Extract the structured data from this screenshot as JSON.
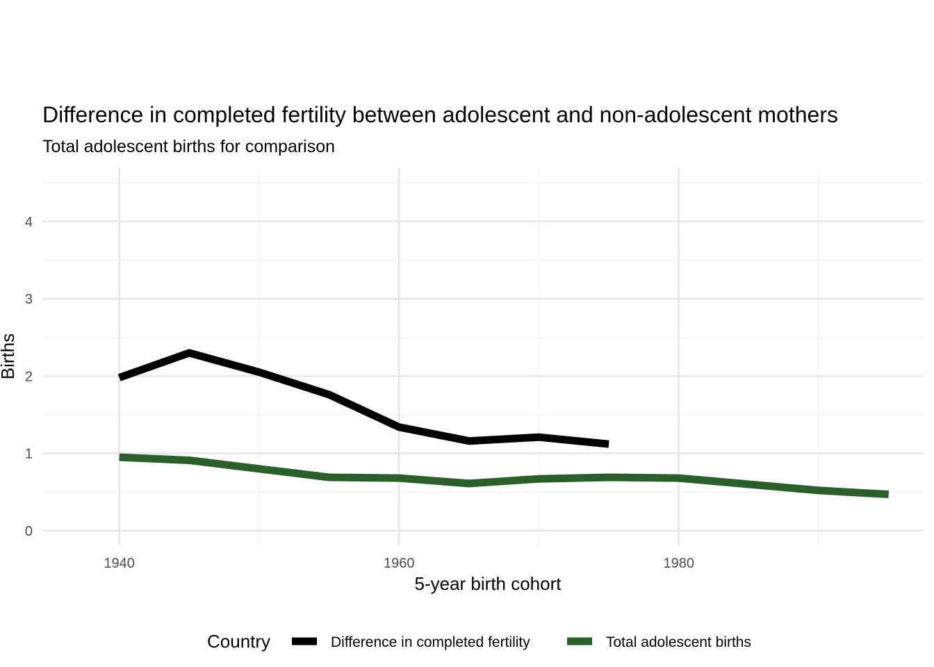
{
  "chart_data": {
    "type": "line",
    "title": "Difference in completed fertility between adolescent and non-adolescent mothers",
    "subtitle": "Total adolescent births for comparison",
    "xlabel": "5-year birth cohort",
    "ylabel": "Births",
    "xlim": [
      1934.5,
      1997.5
    ],
    "ylim": [
      -0.2,
      4.7
    ],
    "x_ticks": [
      1940,
      1960,
      1980
    ],
    "y_ticks": [
      0,
      1,
      2,
      3,
      4
    ],
    "grid": true,
    "legend": {
      "title": "Country",
      "position": "bottom"
    },
    "series": [
      {
        "name": "Difference in completed fertility",
        "color": "#000000",
        "x": [
          1940,
          1945,
          1950,
          1955,
          1960,
          1965,
          1970,
          1975
        ],
        "y": [
          1.98,
          2.3,
          2.05,
          1.76,
          1.34,
          1.16,
          1.21,
          1.12
        ]
      },
      {
        "name": "Total adolescent births",
        "color": "#2a5e2a",
        "x": [
          1940,
          1945,
          1950,
          1955,
          1960,
          1965,
          1970,
          1975,
          1980,
          1985,
          1990,
          1995
        ],
        "y": [
          0.95,
          0.91,
          0.8,
          0.69,
          0.68,
          0.61,
          0.67,
          0.69,
          0.68,
          0.6,
          0.52,
          0.47
        ]
      }
    ]
  }
}
